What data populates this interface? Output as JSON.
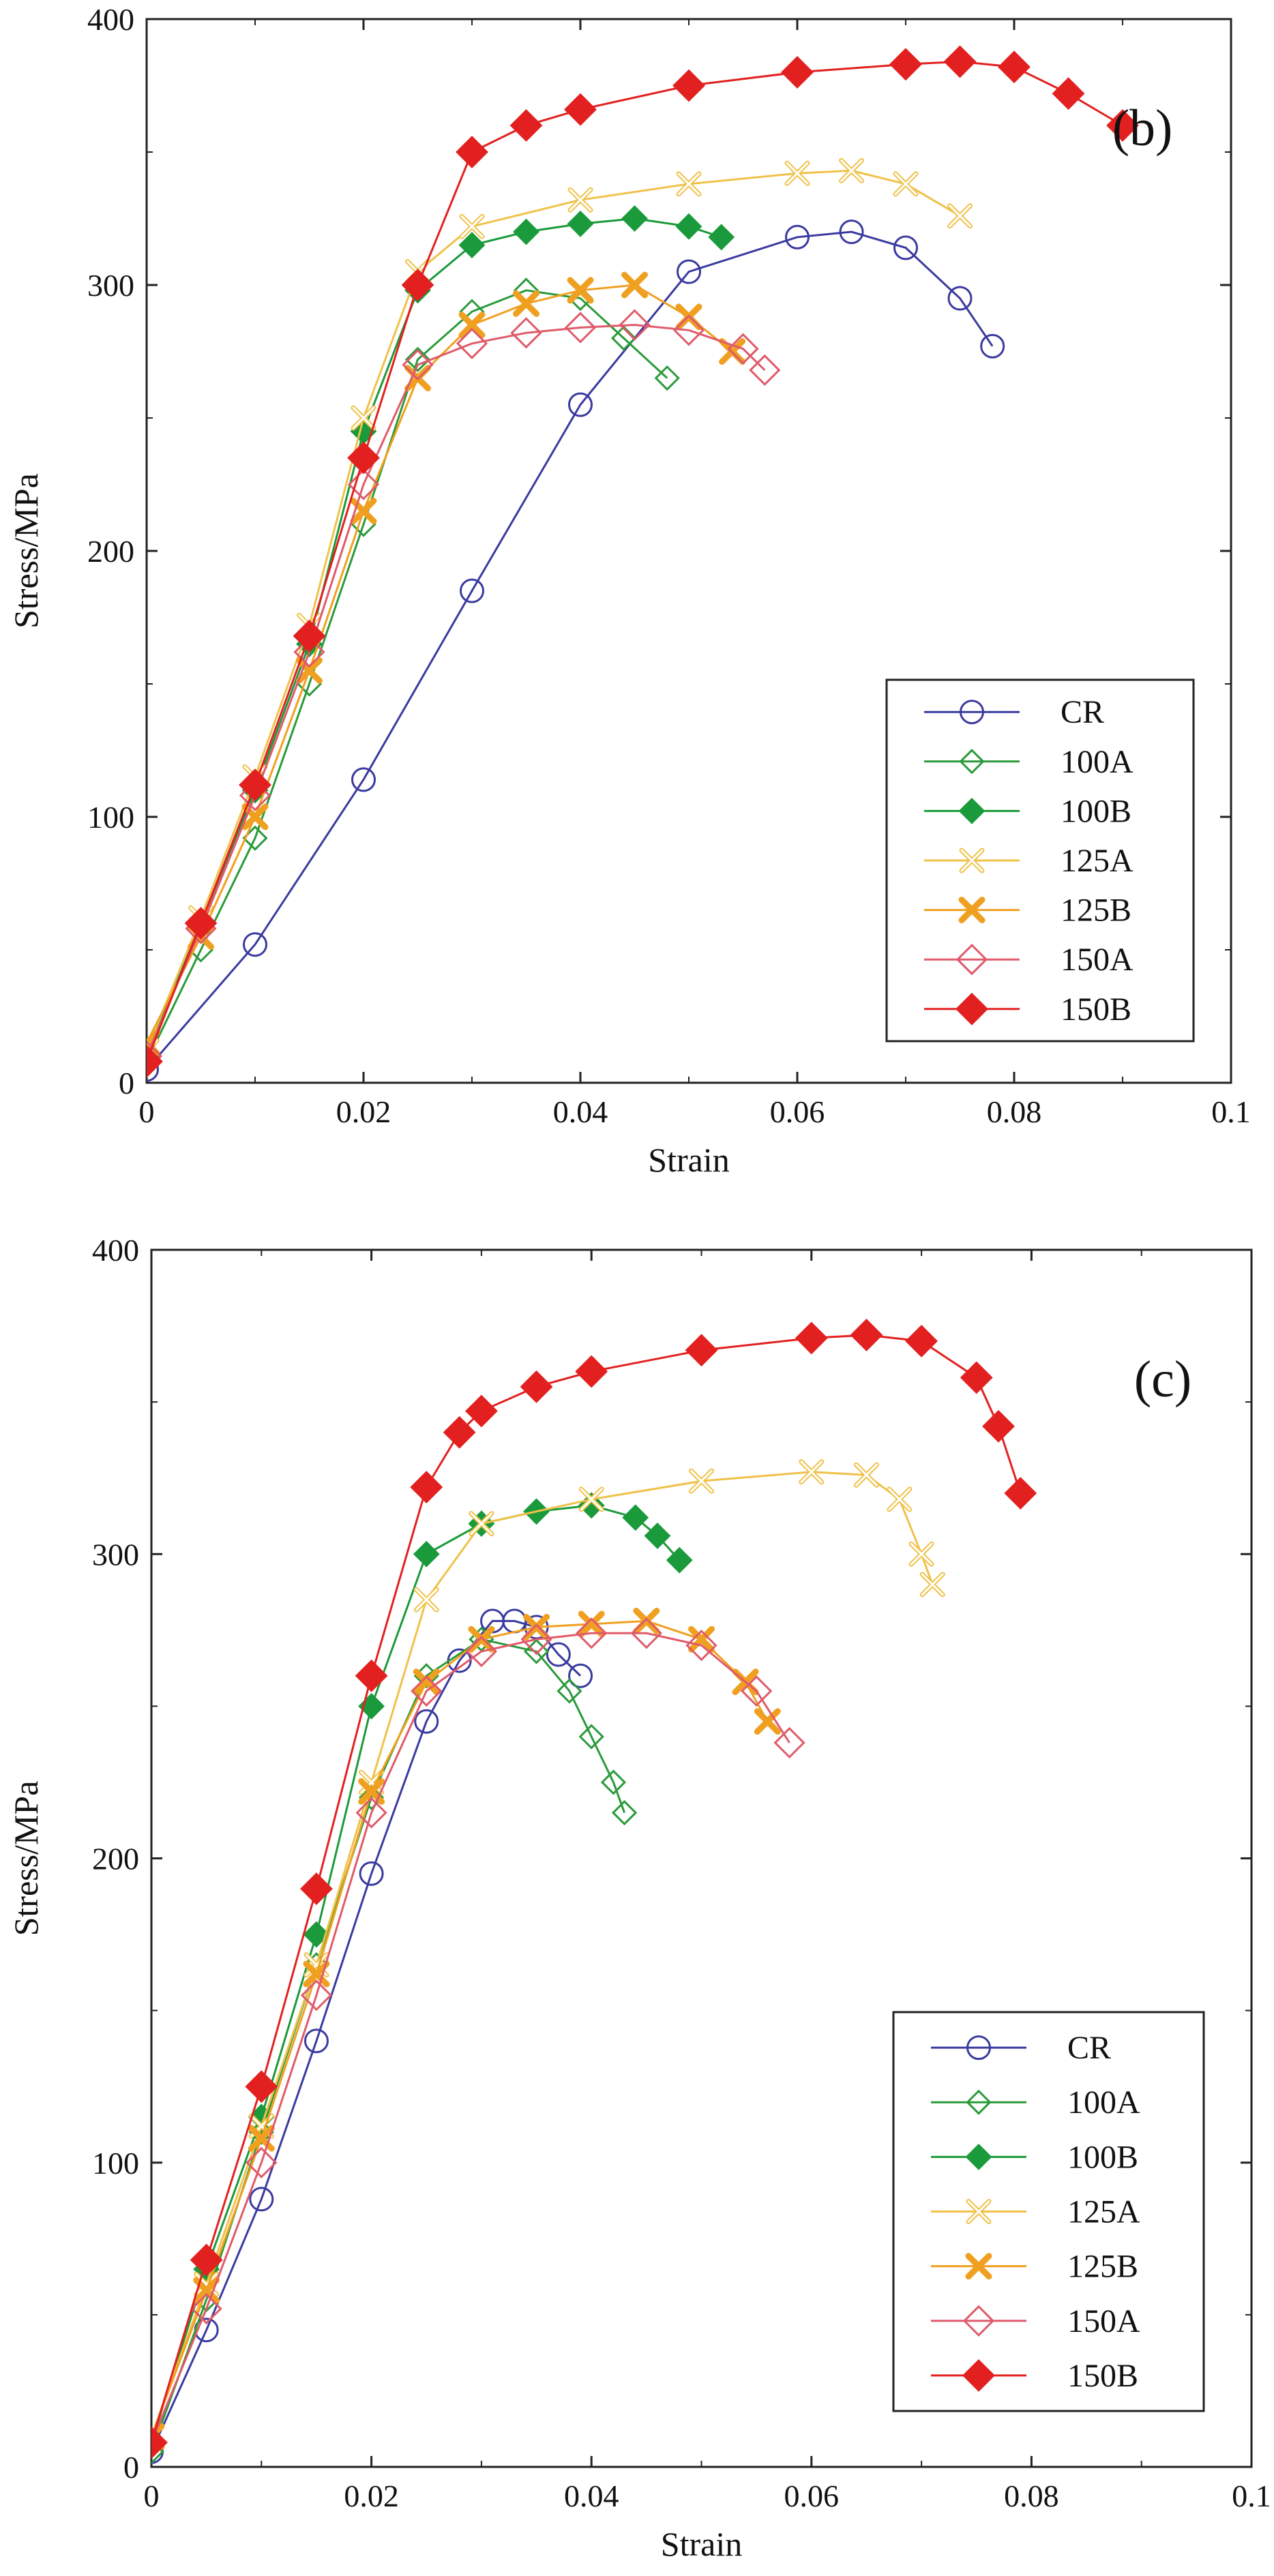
{
  "chart_data": [
    {
      "type": "line",
      "panel_label": "(b)",
      "xlabel": "Strain",
      "ylabel": "Stress/MPa",
      "xlim": [
        0,
        0.1
      ],
      "ylim": [
        0,
        400
      ],
      "xticks": [
        0,
        0.02,
        0.04,
        0.06,
        0.08,
        0.1
      ],
      "xtick_labels": [
        "0",
        "0.02",
        "0.04",
        "0.06",
        "0.08",
        "0.1"
      ],
      "yticks": [
        0,
        100,
        200,
        300,
        400
      ],
      "ytick_labels": [
        "0",
        "100",
        "200",
        "300",
        "400"
      ],
      "grid": false,
      "legend_position": "bottom-right",
      "series": [
        {
          "name": "CR",
          "color": "#3a3aa0",
          "marker": "open-circle",
          "x": [
            0,
            0.01,
            0.02,
            0.03,
            0.04,
            0.05,
            0.06,
            0.065,
            0.07,
            0.075,
            0.078
          ],
          "y": [
            5,
            52,
            114,
            185,
            255,
            305,
            318,
            320,
            314,
            295,
            277
          ]
        },
        {
          "name": "100A",
          "color": "#2a9a3a",
          "marker": "open-diamond-small",
          "x": [
            0,
            0.005,
            0.01,
            0.015,
            0.02,
            0.025,
            0.03,
            0.035,
            0.04,
            0.044,
            0.048
          ],
          "y": [
            8,
            50,
            92,
            150,
            210,
            272,
            290,
            298,
            295,
            280,
            265
          ]
        },
        {
          "name": "100B",
          "color": "#1a9a3a",
          "marker": "filled-diamond-small",
          "x": [
            0,
            0.005,
            0.01,
            0.015,
            0.02,
            0.025,
            0.03,
            0.035,
            0.04,
            0.045,
            0.05,
            0.053
          ],
          "y": [
            10,
            60,
            110,
            165,
            245,
            298,
            315,
            320,
            323,
            325,
            322,
            318
          ]
        },
        {
          "name": "125A",
          "color": "#f0c24a",
          "marker": "open-x",
          "x": [
            0,
            0.005,
            0.01,
            0.015,
            0.02,
            0.025,
            0.03,
            0.04,
            0.05,
            0.06,
            0.065,
            0.07,
            0.075
          ],
          "y": [
            12,
            62,
            115,
            172,
            250,
            305,
            322,
            332,
            338,
            342,
            343,
            338,
            326
          ]
        },
        {
          "name": "125B",
          "color": "#f0a020",
          "marker": "filled-x",
          "x": [
            0,
            0.005,
            0.01,
            0.015,
            0.02,
            0.025,
            0.03,
            0.035,
            0.04,
            0.045,
            0.05,
            0.054
          ],
          "y": [
            15,
            55,
            100,
            155,
            215,
            265,
            285,
            293,
            298,
            300,
            288,
            275
          ]
        },
        {
          "name": "150A",
          "color": "#e05a6a",
          "marker": "open-diamond",
          "x": [
            0,
            0.005,
            0.01,
            0.015,
            0.02,
            0.025,
            0.03,
            0.035,
            0.04,
            0.045,
            0.05,
            0.055,
            0.057
          ],
          "y": [
            10,
            58,
            108,
            162,
            225,
            270,
            278,
            282,
            284,
            285,
            283,
            276,
            268
          ]
        },
        {
          "name": "150B",
          "color": "#e32020",
          "marker": "filled-diamond",
          "x": [
            0,
            0.005,
            0.01,
            0.015,
            0.02,
            0.025,
            0.03,
            0.035,
            0.04,
            0.05,
            0.06,
            0.07,
            0.075,
            0.08,
            0.085,
            0.09
          ],
          "y": [
            8,
            60,
            112,
            168,
            235,
            300,
            350,
            360,
            366,
            375,
            380,
            383,
            384,
            382,
            372,
            360
          ]
        }
      ]
    },
    {
      "type": "line",
      "panel_label": "(c)",
      "xlabel": "Strain",
      "ylabel": "Stress/MPa",
      "xlim": [
        0,
        0.1
      ],
      "ylim": [
        0,
        400
      ],
      "xticks": [
        0,
        0.02,
        0.04,
        0.06,
        0.08,
        0.1
      ],
      "xtick_labels": [
        "0",
        "0.02",
        "0.04",
        "0.06",
        "0.08",
        "0.1"
      ],
      "yticks": [
        0,
        100,
        200,
        300,
        400
      ],
      "ytick_labels": [
        "0",
        "100",
        "200",
        "300",
        "400"
      ],
      "grid": false,
      "legend_position": "bottom-right",
      "series": [
        {
          "name": "CR",
          "color": "#3a3aa0",
          "marker": "open-circle",
          "x": [
            0,
            0.005,
            0.01,
            0.015,
            0.02,
            0.025,
            0.028,
            0.031,
            0.033,
            0.035,
            0.037,
            0.039
          ],
          "y": [
            5,
            45,
            88,
            140,
            195,
            245,
            265,
            278,
            278,
            276,
            267,
            260
          ]
        },
        {
          "name": "100A",
          "color": "#2a9a3a",
          "marker": "open-diamond-small",
          "x": [
            0,
            0.005,
            0.01,
            0.015,
            0.02,
            0.025,
            0.03,
            0.035,
            0.038,
            0.04,
            0.042,
            0.043
          ],
          "y": [
            5,
            55,
            110,
            165,
            220,
            260,
            272,
            268,
            255,
            240,
            225,
            215
          ]
        },
        {
          "name": "100B",
          "color": "#1a9a3a",
          "marker": "filled-diamond-small",
          "x": [
            0,
            0.005,
            0.01,
            0.015,
            0.02,
            0.025,
            0.03,
            0.035,
            0.04,
            0.044,
            0.046,
            0.048
          ],
          "y": [
            8,
            65,
            115,
            175,
            250,
            300,
            310,
            314,
            316,
            312,
            306,
            298
          ]
        },
        {
          "name": "125A",
          "color": "#f0c24a",
          "marker": "open-x",
          "x": [
            0,
            0.005,
            0.01,
            0.015,
            0.02,
            0.025,
            0.03,
            0.04,
            0.05,
            0.06,
            0.065,
            0.068,
            0.07,
            0.071
          ],
          "y": [
            10,
            60,
            112,
            165,
            225,
            285,
            310,
            318,
            324,
            327,
            326,
            318,
            300,
            290
          ]
        },
        {
          "name": "125B",
          "color": "#f0a020",
          "marker": "filled-x",
          "x": [
            0,
            0.005,
            0.01,
            0.015,
            0.02,
            0.025,
            0.03,
            0.035,
            0.04,
            0.045,
            0.05,
            0.054,
            0.056
          ],
          "y": [
            10,
            58,
            108,
            162,
            222,
            258,
            272,
            276,
            277,
            278,
            272,
            258,
            245
          ]
        },
        {
          "name": "150A",
          "color": "#e05a6a",
          "marker": "open-diamond",
          "x": [
            0,
            0.005,
            0.01,
            0.015,
            0.02,
            0.025,
            0.03,
            0.035,
            0.04,
            0.045,
            0.05,
            0.055,
            0.058
          ],
          "y": [
            8,
            52,
            100,
            155,
            215,
            255,
            268,
            272,
            274,
            274,
            270,
            255,
            238
          ]
        },
        {
          "name": "150B",
          "color": "#e32020",
          "marker": "filled-diamond",
          "x": [
            0,
            0.005,
            0.01,
            0.015,
            0.02,
            0.025,
            0.028,
            0.03,
            0.035,
            0.04,
            0.05,
            0.06,
            0.065,
            0.07,
            0.075,
            0.077,
            0.079
          ],
          "y": [
            8,
            68,
            125,
            190,
            260,
            322,
            340,
            347,
            355,
            360,
            367,
            371,
            372,
            370,
            358,
            342,
            320
          ]
        }
      ]
    }
  ]
}
